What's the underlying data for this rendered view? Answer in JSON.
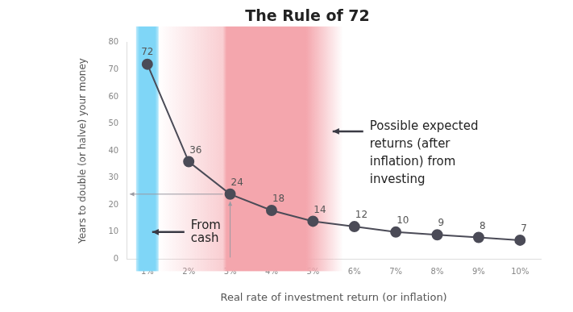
{
  "chart_data": {
    "type": "line",
    "title": "The Rule of 72",
    "x_label": "Real rate of investment return (or inflation)",
    "y_label": "Years to double (or halve) your money",
    "categories": [
      "1%",
      "2%",
      "3%",
      "4%",
      "5%",
      "6%",
      "7%",
      "8%",
      "9%",
      "10%"
    ],
    "values": [
      72,
      36,
      24,
      18,
      14,
      12,
      10,
      9,
      8,
      7
    ],
    "color": "#4b4b57",
    "marker": "circle",
    "ylim": [
      0,
      80
    ],
    "yticks": [
      0,
      10,
      20,
      30,
      40,
      50,
      60,
      70,
      80
    ],
    "grid": false,
    "data_labels": true,
    "annotations": [
      {
        "text": [
          "From",
          "cash"
        ],
        "band": [
          "1%",
          "1%"
        ],
        "color": "#7fd6f7"
      },
      {
        "text": [
          "Possible expected",
          "returns (after",
          "inflation) from",
          "investing"
        ],
        "band": [
          "2%",
          "6%"
        ],
        "color": "#f4a6ad"
      }
    ],
    "highlight": {
      "x": "3%",
      "y": 24
    }
  }
}
